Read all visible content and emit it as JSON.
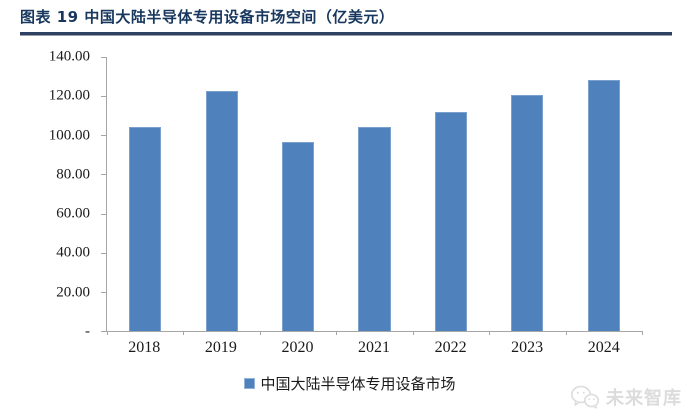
{
  "header": {
    "title": "图表 19 中国大陆半导体专用设备市场空间（亿美元）"
  },
  "chart_data": {
    "type": "bar",
    "title": "中国大陆半导体专用设备市场空间（亿美元）",
    "unit": "亿美元",
    "categories": [
      "2018",
      "2019",
      "2020",
      "2021",
      "2022",
      "2023",
      "2024"
    ],
    "values": [
      104.0,
      122.5,
      96.5,
      104.0,
      112.0,
      120.5,
      128.5
    ],
    "ylim": [
      0,
      140
    ],
    "y_tick_values": [
      140,
      120,
      100,
      80,
      60,
      40,
      20,
      0
    ],
    "y_tick_labels": [
      "140.00",
      "120.00",
      "100.00",
      "80.00",
      "60.00",
      "40.00",
      "20.00",
      "-"
    ],
    "grid": false,
    "bar_color": "#4F81BD",
    "axis_color": "#A6A6A6",
    "legend_position": "bottom",
    "legend": [
      {
        "label": "中国大陆半导体专用设备市场",
        "color": "#4F81BD"
      }
    ]
  },
  "watermark": {
    "icon": "wechat-icon",
    "text": "未来智库",
    "color": "#DCDCDC"
  }
}
